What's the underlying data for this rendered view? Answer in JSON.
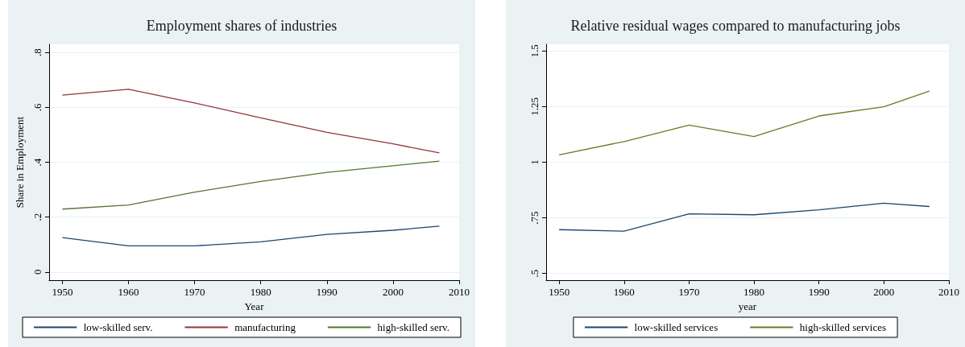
{
  "chart_data": [
    {
      "type": "line",
      "title": "Employment shares of industries",
      "xlabel": "Year",
      "ylabel": "Share in Employment",
      "x": [
        1950,
        1960,
        1970,
        1980,
        1990,
        2000,
        2007
      ],
      "series": [
        {
          "name": "low-skilled serv.",
          "color": "#1a476f",
          "values": [
            0.125,
            0.095,
            0.095,
            0.11,
            0.137,
            0.152,
            0.167
          ]
        },
        {
          "name": "manufacturing",
          "color": "#90353b",
          "values": [
            0.645,
            0.666,
            0.616,
            0.562,
            0.509,
            0.467,
            0.434
          ]
        },
        {
          "name": "high-skilled serv.",
          "color": "#55752f",
          "values": [
            0.229,
            0.244,
            0.291,
            0.33,
            0.363,
            0.387,
            0.404
          ]
        }
      ],
      "xlim": [
        1948,
        2010
      ],
      "xticks": [
        1950,
        1960,
        1970,
        1980,
        1990,
        2000,
        2010
      ],
      "ylim": [
        -0.03,
        0.83
      ],
      "yticks": [
        {
          "value": 0,
          "label": "0"
        },
        {
          "value": 0.2,
          "label": ".2"
        },
        {
          "value": 0.4,
          "label": ".4"
        },
        {
          "value": 0.6,
          "label": ".6"
        },
        {
          "value": 0.8,
          "label": ".8"
        }
      ],
      "grid": "y",
      "legend": "bottom",
      "marker": "none",
      "line_style": "solid"
    },
    {
      "type": "line",
      "title": "Relative residual wages compared to manufacturing jobs",
      "xlabel": "year",
      "x": [
        1950,
        1960,
        1970,
        1980,
        1990,
        2000,
        2007
      ],
      "series": [
        {
          "name": "low-skilled services",
          "color": "#1a476f",
          "values": [
            0.697,
            0.69,
            0.768,
            0.764,
            0.786,
            0.816,
            0.801
          ]
        },
        {
          "name": "high-skilled services",
          "color": "#6b7a25",
          "values": [
            1.033,
            1.093,
            1.167,
            1.115,
            1.208,
            1.249,
            1.32
          ]
        }
      ],
      "xlim": [
        1948,
        2010
      ],
      "xticks": [
        1950,
        1960,
        1970,
        1980,
        1990,
        2000,
        2010
      ],
      "ylim": [
        0.47,
        1.53
      ],
      "yticks": [
        {
          "value": 0.5,
          "label": ".5"
        },
        {
          "value": 0.75,
          "label": ".75"
        },
        {
          "value": 1,
          "label": "1"
        },
        {
          "value": 1.25,
          "label": "1.25"
        },
        {
          "value": 1.5,
          "label": "1.5"
        }
      ],
      "grid": "y",
      "legend": "bottom",
      "marker": "none",
      "line_style": "solid"
    }
  ]
}
